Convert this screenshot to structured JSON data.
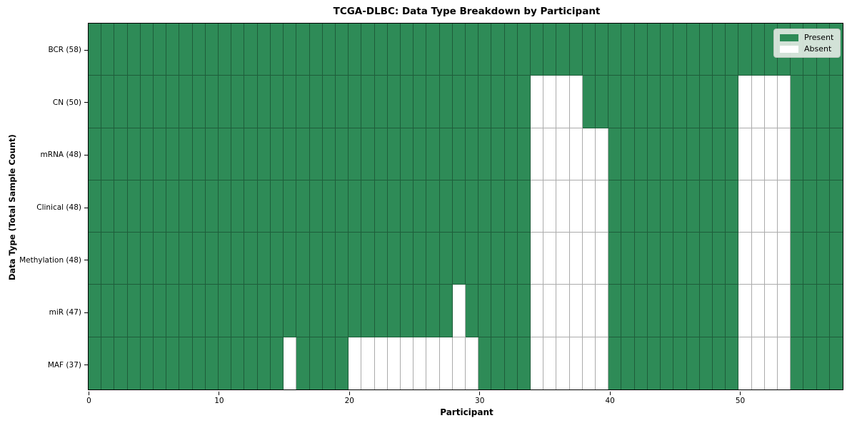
{
  "figure": {
    "title": "TCGA-DLBC: Data Type Breakdown by Participant",
    "xlabel": "Participant",
    "ylabel": "Data Type (Total Sample Count)"
  },
  "chart_data": {
    "type": "heatmap",
    "title": "TCGA-DLBC: Data Type Breakdown by Participant",
    "xlabel": "Participant",
    "ylabel": "Data Type (Total Sample Count)",
    "n_participants": 58,
    "x_range": [
      0,
      58
    ],
    "x_ticks": [
      0,
      10,
      20,
      30,
      40,
      50
    ],
    "grid": true,
    "legend_position": "upper right",
    "colors": {
      "present": "#2e8b57",
      "absent": "#ffffff"
    },
    "legend": [
      {
        "label": "Present",
        "color": "#2e8b57"
      },
      {
        "label": "Absent",
        "color": "#ffffff"
      }
    ],
    "rows": [
      {
        "label": "BCR (58)",
        "total_samples": 58,
        "absent_participants": []
      },
      {
        "label": "CN (50)",
        "total_samples": 50,
        "absent_participants": [
          34,
          35,
          36,
          37,
          50,
          51,
          52,
          53
        ]
      },
      {
        "label": "mRNA (48)",
        "total_samples": 48,
        "absent_participants": [
          34,
          35,
          36,
          37,
          38,
          39,
          50,
          51,
          52,
          53
        ]
      },
      {
        "label": "Clinical (48)",
        "total_samples": 48,
        "absent_participants": [
          34,
          35,
          36,
          37,
          38,
          39,
          50,
          51,
          52,
          53
        ]
      },
      {
        "label": "Methylation (48)",
        "total_samples": 48,
        "absent_participants": [
          34,
          35,
          36,
          37,
          38,
          39,
          50,
          51,
          52,
          53
        ]
      },
      {
        "label": "miR (47)",
        "total_samples": 47,
        "absent_participants": [
          28,
          34,
          35,
          36,
          37,
          38,
          39,
          50,
          51,
          52,
          53
        ]
      },
      {
        "label": "MAF (37)",
        "total_samples": 37,
        "absent_participants": [
          15,
          20,
          21,
          22,
          23,
          24,
          25,
          26,
          27,
          28,
          29,
          34,
          35,
          36,
          37,
          38,
          39,
          50,
          51,
          52,
          53
        ]
      }
    ]
  }
}
